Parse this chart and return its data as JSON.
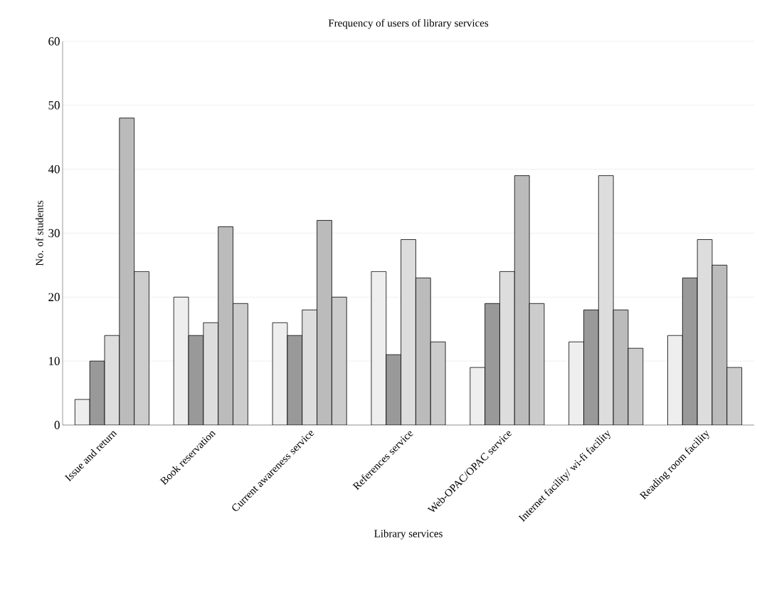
{
  "chart_data": {
    "type": "bar",
    "title": "Frequency of users of library services",
    "xlabel": "Library services",
    "ylabel": "No. of students",
    "categories": [
      "Issue and return",
      "Book reservation",
      "Current awareness service",
      "References service",
      "Web-OPAC/OPAC service",
      "Internet facility/ wi-fi facility",
      "Reading room facility"
    ],
    "series": [
      {
        "color": "#eeeeee",
        "values": [
          4,
          20,
          16,
          24,
          9,
          13,
          14
        ]
      },
      {
        "color": "#999999",
        "values": [
          10,
          14,
          14,
          11,
          19,
          18,
          23
        ]
      },
      {
        "color": "#dddddd",
        "values": [
          14,
          16,
          18,
          29,
          24,
          39,
          29
        ]
      },
      {
        "color": "#bbbbbb",
        "values": [
          48,
          31,
          32,
          23,
          39,
          18,
          25
        ]
      },
      {
        "color": "#cccccc",
        "values": [
          24,
          19,
          20,
          13,
          19,
          12,
          9
        ]
      }
    ],
    "ylim": [
      0,
      60
    ],
    "yticks": [
      0,
      10,
      20,
      30,
      40,
      50,
      60
    ],
    "grid": "y"
  }
}
